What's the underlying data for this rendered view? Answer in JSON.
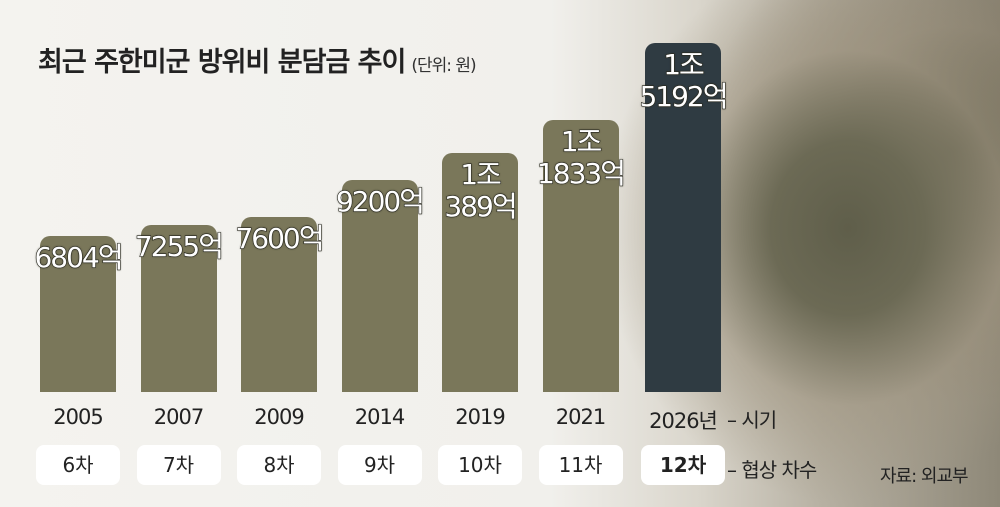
{
  "chart_data": {
    "type": "bar",
    "title": "최근 주한미군 방위비 분담금 추이",
    "subtitle": "(단위: 원)",
    "categories": [
      "2005",
      "2007",
      "2009",
      "2014",
      "2019",
      "2021",
      "2026년"
    ],
    "values": [
      6804,
      7255,
      7600,
      9200,
      10389,
      11833,
      15192
    ],
    "value_labels": [
      "6804억",
      "7255억",
      "7600억",
      "9200억",
      "1조\n389억",
      "1조\n1833억",
      "1조\n5192억"
    ],
    "colors": [
      "#7a775a",
      "#7a775a",
      "#7a775a",
      "#7a775a",
      "#7a775a",
      "#7a775a",
      "#2f3b42"
    ],
    "rounds": [
      "6차",
      "7차",
      "8차",
      "9차",
      "10차",
      "11차",
      "12차"
    ],
    "annotations": [
      "– 시기",
      "– 협상 차수"
    ],
    "source": "자료: 외교부",
    "ylim": [
      0,
      16000
    ]
  }
}
